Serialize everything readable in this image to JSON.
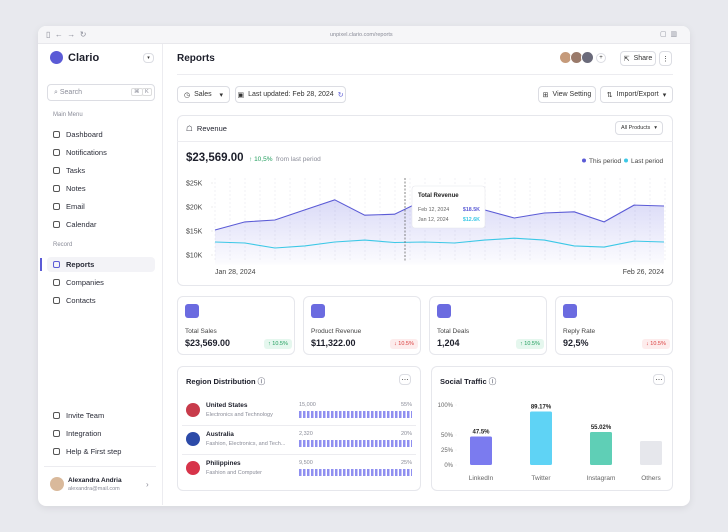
{
  "browser": {
    "url": "unpixel.clario.com/reports"
  },
  "sidebar": {
    "brand": "Clario",
    "search": "Search",
    "shortcut": [
      "⌘",
      "K"
    ],
    "sections": [
      {
        "title": "Main Menu",
        "items": [
          "Dashboard",
          "Notifications",
          "Tasks",
          "Notes",
          "Email",
          "Calendar"
        ]
      },
      {
        "title": "Record",
        "items": [
          "Reports",
          "Companies",
          "Contacts"
        ]
      }
    ],
    "footer_items": [
      "Invite Team",
      "Integration",
      "Help & First step"
    ],
    "user": {
      "name": "Alexandra Andria",
      "email": "alexandra@mail.com"
    }
  },
  "header": {
    "title": "Reports",
    "share": "Share"
  },
  "toolbar": {
    "filter": "Sales",
    "updated": "Last updated: Feb 28, 2024",
    "view": "View Setting",
    "import": "Import/Export"
  },
  "revenue": {
    "title": "Revenue",
    "filter": "All Products",
    "total": "$23,569.00",
    "change": "10,5%",
    "change_note": "from last period",
    "tooltip": {
      "title": "Total Revenue",
      "rows": [
        {
          "date": "Feb 12, 2024",
          "value": "$18.5K"
        },
        {
          "date": "Jan 12, 2024",
          "value": "$12.6K"
        }
      ]
    }
  },
  "chart_data": [
    {
      "type": "line",
      "categories": [
        "Jan 28, 2024",
        null,
        null,
        null,
        null,
        null,
        null,
        null,
        null,
        null,
        null,
        null,
        null,
        null,
        null,
        "Feb 26, 2024"
      ],
      "series": [
        {
          "name": "This period",
          "color": "#5b5bd6",
          "values": [
            15200,
            16900,
            17300,
            19400,
            21500,
            18300,
            18500,
            21500,
            21500,
            19400,
            17700,
            18750,
            19000,
            16900,
            20400,
            20200
          ]
        },
        {
          "name": "Last period",
          "color": "#3cc8e6",
          "values": [
            12700,
            12500,
            11450,
            11900,
            12700,
            13100,
            12600,
            12700,
            12500,
            13100,
            13500,
            13100,
            11900,
            11650,
            12900,
            12700
          ]
        }
      ],
      "ylim": [
        8000,
        26000
      ],
      "yticks": [
        {
          "value": 25000,
          "label": "$25K"
        },
        {
          "value": 20000,
          "label": "$20K"
        },
        {
          "value": 15000,
          "label": "$15K"
        },
        {
          "value": 10000,
          "label": "$10K"
        }
      ],
      "legend": "top-right"
    },
    {
      "type": "bar",
      "title": "Social Traffic",
      "categories": [
        "LinkedIn",
        "Twitter",
        "Instagram",
        "Others"
      ],
      "values": [
        47.5,
        89.17,
        55.02,
        40
      ],
      "value_labels": [
        "47.5%",
        "89.17%",
        "55.02%",
        null
      ],
      "colors": [
        "#7b7bef",
        "#5fd3f5",
        "#5fcfb6",
        "#e6e7ec"
      ],
      "ylim": [
        0,
        100
      ],
      "yticks": [
        {
          "value": 100,
          "label": "100%"
        },
        {
          "value": 50,
          "label": "50%"
        },
        {
          "value": 25,
          "label": "25%"
        },
        {
          "value": 0,
          "label": "0%"
        }
      ]
    }
  ],
  "kpis": [
    {
      "label": "Total Sales",
      "value": "$23,569.00",
      "change": "10.5%",
      "direction": "up"
    },
    {
      "label": "Product Revenue",
      "value": "$11,322.00",
      "change": "10.5%",
      "direction": "down"
    },
    {
      "label": "Total Deals",
      "value": "1,204",
      "change": "10.5%",
      "direction": "up"
    },
    {
      "label": "Reply Rate",
      "value": "92,5%",
      "change": "10.5%",
      "direction": "down"
    }
  ],
  "region": {
    "title": "Region Distribution",
    "rows": [
      {
        "country": "United States",
        "category": "Electronics and Technology",
        "count": "15,000",
        "share": "55%"
      },
      {
        "country": "Australia",
        "category": "Fashion, Electronics, and Tech...",
        "count": "2,320",
        "share": "20%"
      },
      {
        "country": "Philippines",
        "category": "Fashion and Computer",
        "count": "9,500",
        "share": "25%"
      }
    ]
  }
}
